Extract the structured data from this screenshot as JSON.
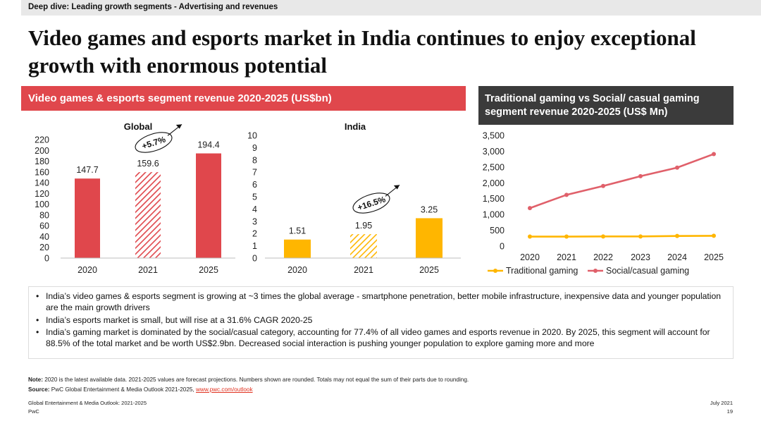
{
  "header": {
    "section": "Deep dive: Leading growth segments - Advertising and revenues",
    "title": "Video games and esports market in India continues to enjoy exceptional growth with enormous potential"
  },
  "left_panel": {
    "heading": "Video games & esports segment revenue 2020-2025 (US$bn)"
  },
  "right_panel": {
    "heading": "Traditional gaming vs Social/ casual gaming segment revenue 2020-2025 (US$ Mn)"
  },
  "chart_data": [
    {
      "type": "bar",
      "title": "Global",
      "categories": [
        "2020",
        "2021",
        "2025"
      ],
      "values": [
        147.7,
        159.6,
        194.4
      ],
      "data_labels": [
        "147.7",
        "159.6",
        "194.4"
      ],
      "ylim": [
        0,
        220
      ],
      "yticks": [
        "0",
        "20",
        "40",
        "60",
        "80",
        "100",
        "120",
        "140",
        "160",
        "180",
        "200",
        "220"
      ],
      "bar_styles": [
        "solid",
        "hatched",
        "solid"
      ],
      "color": "#e0474c",
      "annotation": "+5.7%"
    },
    {
      "type": "bar",
      "title": "India",
      "categories": [
        "2020",
        "2021",
        "2025"
      ],
      "values": [
        1.51,
        1.95,
        3.25
      ],
      "data_labels": [
        "1.51",
        "1.95",
        "3.25"
      ],
      "ylim": [
        0,
        10
      ],
      "yticks": [
        "0",
        "1",
        "2",
        "3",
        "4",
        "5",
        "6",
        "7",
        "8",
        "9",
        "10"
      ],
      "bar_styles": [
        "solid",
        "hatched",
        "solid"
      ],
      "color": "#ffb600",
      "annotation": "+16.5%"
    },
    {
      "type": "line",
      "x": [
        "2020",
        "2021",
        "2022",
        "2023",
        "2024",
        "2025"
      ],
      "ylim": [
        0,
        3500
      ],
      "yticks": [
        "0",
        "500",
        "1,000",
        "1,500",
        "2,000",
        "2,500",
        "3,000",
        "3,500"
      ],
      "series": [
        {
          "name": "Traditional gaming",
          "values": [
            300,
            300,
            305,
            305,
            320,
            325
          ],
          "color": "#ffb600"
        },
        {
          "name": "Social/casual gaming",
          "values": [
            1200,
            1620,
            1900,
            2210,
            2480,
            2910
          ],
          "color": "#e0606a"
        }
      ],
      "legend": "bottom"
    }
  ],
  "bullets": [
    "India’s video games & esports segment is growing at ~3 times the global average - smartphone penetration, better mobile infrastructure, inexpensive data and younger population are the main growth drivers",
    "India’s esports market is small, but will rise at a 31.6% CAGR 2020-25",
    "India’s gaming market is dominated by the social/casual category, accounting for 77.4% of all video games and esports revenue in 2020. By 2025, this segment will account for 88.5% of the total market and be worth US$2.9bn. Decreased social interaction is pushing younger population to explore gaming more and more"
  ],
  "footnotes": {
    "note_label": "Note:",
    "note_text": " 2020 is the latest available data. 2021-2025 values are forecast projections. Numbers shown are rounded. Totals may not equal the sum of their parts due to rounding.",
    "source_label": "Source:",
    "source_text": " PwC Global Entertainment & Media Outlook 2021-2025, ",
    "source_link": "www.pwc.com/outlook"
  },
  "footer": {
    "left_line1": "Global Entertainment & Media Outlook: 2021-2025",
    "left_line2": "PwC",
    "date": "July 2021",
    "page": "19"
  },
  "colors": {
    "red": "#e0474c",
    "orange": "#ffb600",
    "dark": "#3b3b3b",
    "pink": "#e0606a"
  }
}
